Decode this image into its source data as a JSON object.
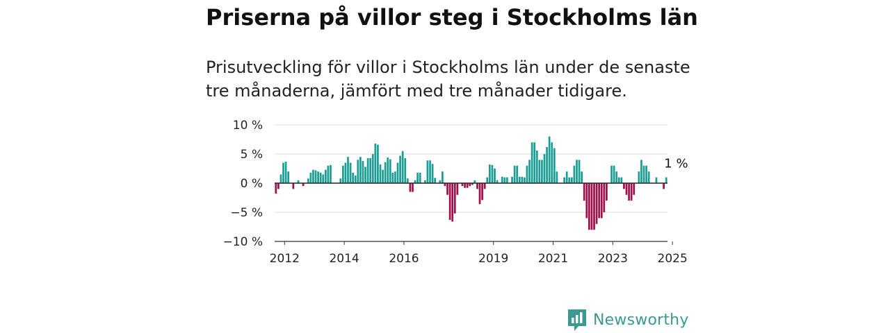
{
  "title": "Priserna på villor steg i Stockholms län",
  "subtitle": "Prisutveckling för villor i Stockholms län under de senaste tre månaderna, jämfört med tre månader tidigare.",
  "brand": {
    "name": "Newsworthy",
    "icon": "newsworthy-logo-icon",
    "color": "#3a9a91"
  },
  "colors": {
    "positive": "#1a9e93",
    "negative": "#a0104a",
    "zero_line": "#222222",
    "grid": "#dddddd"
  },
  "chart_data": {
    "type": "bar",
    "ylim": [
      -10,
      10
    ],
    "y_ticks": [
      {
        "value": 10,
        "label": "10 %"
      },
      {
        "value": 5,
        "label": "5 %"
      },
      {
        "value": 0,
        "label": "0 %"
      },
      {
        "value": -5,
        "label": "−5 %"
      },
      {
        "value": -10,
        "label": "−10 %"
      }
    ],
    "x_ticks": [
      {
        "year": 2012,
        "label": "2012"
      },
      {
        "year": 2014,
        "label": "2014"
      },
      {
        "year": 2016,
        "label": "2016"
      },
      {
        "year": 2019,
        "label": "2019"
      },
      {
        "year": 2021,
        "label": "2021"
      },
      {
        "year": 2023,
        "label": "2023"
      },
      {
        "year": 2025,
        "label": "2025"
      }
    ],
    "x_start": "2011-09",
    "end_label": "1 %",
    "grid": true,
    "series": [
      {
        "values": [
          -1.8,
          -1.0,
          1.5,
          3.5,
          3.7,
          2.0,
          0,
          -1.0,
          0,
          0.5,
          0,
          -0.5,
          0,
          0.8,
          1.8,
          2.3,
          2.2,
          2.0,
          1.8,
          1.5,
          2.3,
          3.0,
          3.1,
          0,
          0,
          0,
          0.8,
          3.0,
          3.5,
          4.5,
          3.5,
          1.8,
          1.3,
          4.0,
          4.5,
          3.8,
          2.8,
          4.3,
          4.3,
          5.0,
          6.8,
          6.6,
          3.2,
          2.3,
          3.6,
          4.4,
          4.1,
          1.8,
          2.0,
          3.5,
          4.7,
          5.5,
          4.3,
          0.8,
          -1.5,
          -1.5,
          0.5,
          1.8,
          1.8,
          0,
          0.5,
          3.9,
          3.9,
          3.3,
          0.9,
          0,
          0.5,
          2.0,
          -0.5,
          -2.0,
          -6.3,
          -6.6,
          -5.2,
          -2.0,
          0,
          -0.5,
          -0.8,
          -0.8,
          -0.5,
          -0.3,
          0.5,
          -1.0,
          -3.6,
          -2.9,
          -1.0,
          1.0,
          3.2,
          3.1,
          2.5,
          0.5,
          0,
          1.1,
          1.0,
          1.0,
          0,
          1.1,
          3.0,
          3.0,
          1.1,
          1.1,
          1.0,
          3.0,
          4.0,
          7.0,
          7.0,
          5.6,
          4.0,
          4.0,
          5.0,
          6.2,
          8.0,
          7.0,
          6.0,
          2.0,
          0,
          0,
          1.0,
          2.0,
          1.0,
          1.0,
          3.0,
          4.0,
          4.0,
          2.0,
          -3.0,
          -6.0,
          -8.0,
          -8.0,
          -8.0,
          -7.0,
          -6.0,
          -6.0,
          -5.0,
          -3.0,
          0,
          3.0,
          3.0,
          2.0,
          1.0,
          1.0,
          -1.0,
          -2.0,
          -3.0,
          -3.0,
          -2.0,
          0,
          2.0,
          4.0,
          3.0,
          3.0,
          2.0,
          0,
          0,
          1.0,
          0,
          0,
          -1.0,
          1.0
        ]
      }
    ]
  }
}
